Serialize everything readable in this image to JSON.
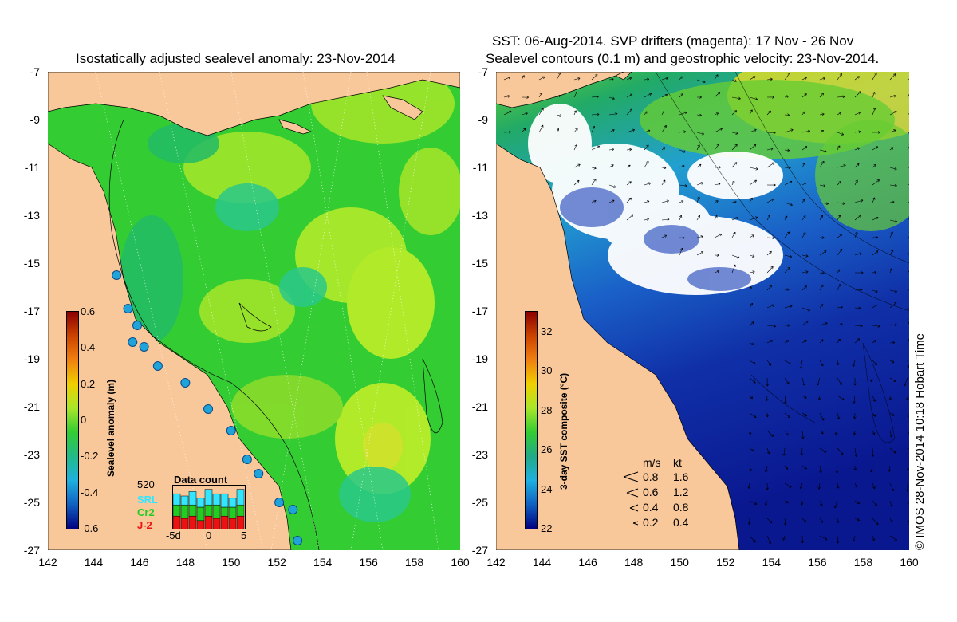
{
  "left_panel": {
    "title": "Isostatically adjusted sealevel anomaly: 23-Nov-2014",
    "colorbar": {
      "title": "Sealevel anomaly (m)",
      "ticks": [
        "0.6",
        "0.4",
        "0.2",
        "0",
        "-0.2",
        "-0.4",
        "-0.6"
      ],
      "range": [
        -0.6,
        0.6
      ]
    },
    "data_count": {
      "title": "Data count",
      "max_label": "520",
      "satellites": [
        "SRL",
        "Cr2",
        "J-2"
      ],
      "satellite_colors": [
        "#33e6ff",
        "#22cc22",
        "#ee1111"
      ],
      "x_labels": [
        "-5d",
        "0",
        "5"
      ],
      "bars": [
        {
          "j2": 0.3,
          "cr2": 0.25,
          "srl": 0.25
        },
        {
          "j2": 0.25,
          "cr2": 0.3,
          "srl": 0.2
        },
        {
          "j2": 0.3,
          "cr2": 0.25,
          "srl": 0.3
        },
        {
          "j2": 0.2,
          "cr2": 0.3,
          "srl": 0.2
        },
        {
          "j2": 0.3,
          "cr2": 0.25,
          "srl": 0.35
        },
        {
          "j2": 0.25,
          "cr2": 0.3,
          "srl": 0.25
        },
        {
          "j2": 0.3,
          "cr2": 0.2,
          "srl": 0.3
        },
        {
          "j2": 0.25,
          "cr2": 0.25,
          "srl": 0.2
        },
        {
          "j2": 0.3,
          "cr2": 0.25,
          "srl": 0.35
        }
      ]
    }
  },
  "right_panel": {
    "title_line1": "SST: 06-Aug-2014. SVP drifters (magenta): 17 Nov - 26 Nov",
    "title_line2": "Sealevel contours (0.1 m) and geostrophic velocity: 23-Nov-2014.",
    "colorbar": {
      "title": "3-day SST composite (°C)",
      "ticks": [
        "32",
        "30",
        "28",
        "26",
        "24",
        "22"
      ],
      "range": [
        22,
        33
      ]
    },
    "velocity_legend": {
      "header_ms": "m/s",
      "header_kt": "kt",
      "rows": [
        {
          "ms": "0.8",
          "kt": "1.6"
        },
        {
          "ms": "0.6",
          "kt": "1.2"
        },
        {
          "ms": "0.4",
          "kt": "0.8"
        },
        {
          "ms": "0.2",
          "kt": "0.4"
        }
      ]
    }
  },
  "axes": {
    "lat_ticks": [
      "-7",
      "-9",
      "-11",
      "-13",
      "-15",
      "-17",
      "-19",
      "-21",
      "-23",
      "-25",
      "-27"
    ],
    "lon_ticks": [
      "142",
      "144",
      "146",
      "148",
      "150",
      "152",
      "154",
      "156",
      "158",
      "160"
    ],
    "lat_range": [
      -27,
      -7
    ],
    "lon_range": [
      142,
      160
    ]
  },
  "stamp": "© IMOS 28-Nov-2014 10:18 Hobart Time",
  "tide_gauges": [
    {
      "lon": 145.0,
      "lat": -15.5
    },
    {
      "lon": 145.5,
      "lat": -16.9
    },
    {
      "lon": 145.9,
      "lat": -17.6
    },
    {
      "lon": 145.7,
      "lat": -18.3
    },
    {
      "lon": 146.2,
      "lat": -18.5
    },
    {
      "lon": 146.8,
      "lat": -19.3
    },
    {
      "lon": 148.0,
      "lat": -20.0
    },
    {
      "lon": 149.0,
      "lat": -21.1
    },
    {
      "lon": 150.0,
      "lat": -22.0
    },
    {
      "lon": 150.7,
      "lat": -23.2
    },
    {
      "lon": 151.2,
      "lat": -23.8
    },
    {
      "lon": 152.1,
      "lat": -25.0
    },
    {
      "lon": 152.7,
      "lat": -25.3
    },
    {
      "lon": 152.9,
      "lat": -26.6
    }
  ],
  "colors": {
    "land": "#f8c89a",
    "coast_line": "#000000",
    "cloud": "#ffffff"
  }
}
